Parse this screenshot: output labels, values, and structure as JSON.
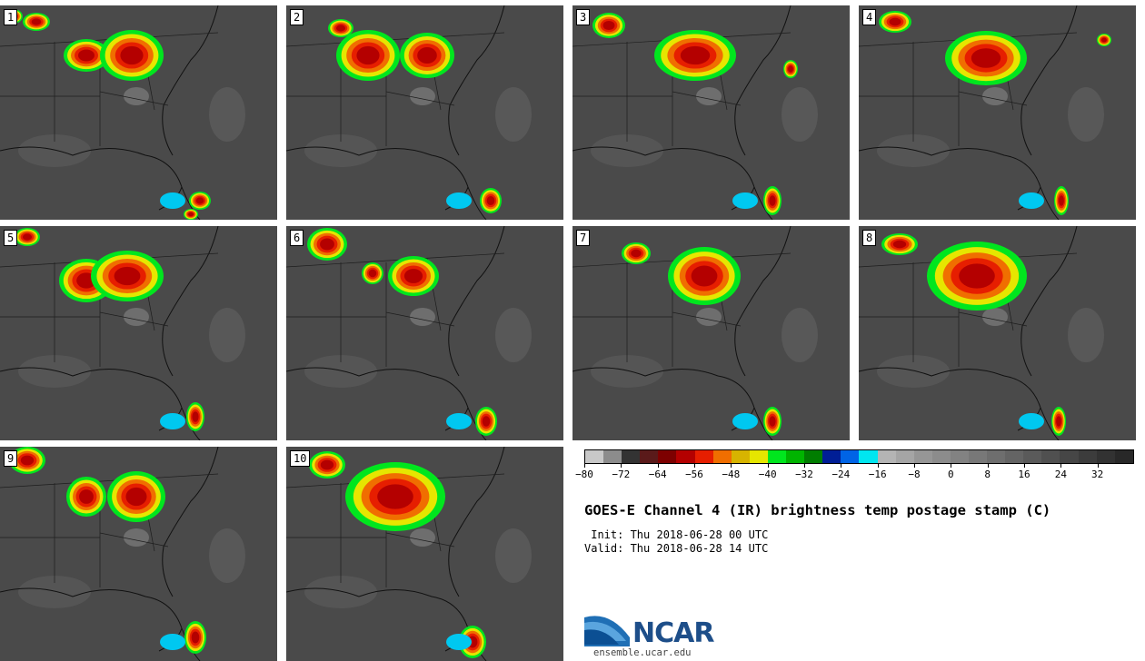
{
  "panels": [
    "1",
    "2",
    "3",
    "4",
    "5",
    "6",
    "7",
    "8",
    "9",
    "10"
  ],
  "colorbar": {
    "colors": [
      "#c8c8c8",
      "#8c8c8c",
      "#333333",
      "#5a1a1a",
      "#7d0000",
      "#b40000",
      "#e61e00",
      "#f06e00",
      "#d7b400",
      "#e6e600",
      "#00e61e",
      "#00b400",
      "#007d00",
      "#001e96",
      "#0064e6",
      "#00e6f0",
      "#b4b4b4",
      "#a5a5a5",
      "#969696",
      "#8c8c8c",
      "#828282",
      "#787878",
      "#6e6e6e",
      "#646464",
      "#5a5a5a",
      "#505050",
      "#464646",
      "#3c3c3c",
      "#323232",
      "#282828"
    ],
    "tick_labels": [
      "−80",
      "−72",
      "−64",
      "−56",
      "−48",
      "−40",
      "−32",
      "−24",
      "−16",
      "−8",
      "0",
      "8",
      "16",
      "24",
      "32"
    ]
  },
  "title": "GOES-E Channel 4 (IR) brightness temp postage stamp (C)",
  "init": " Init: Thu 2018-06-28 00 UTC",
  "valid": "Valid: Thu 2018-06-28 14 UTC",
  "logo": {
    "name": "NCAR",
    "url": "ensemble.ucar.edu"
  }
}
